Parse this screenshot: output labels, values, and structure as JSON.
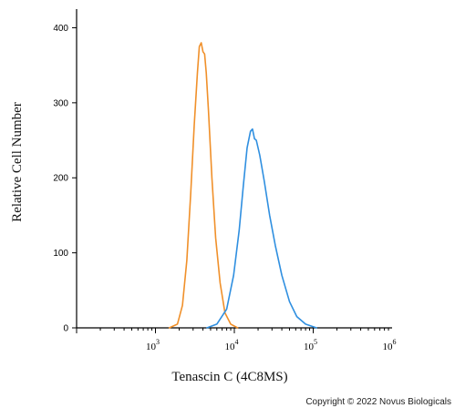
{
  "chart_data": {
    "type": "line",
    "title": "",
    "xlabel": "Tenascin C (4C8MS)",
    "ylabel": "Relative Cell Number",
    "x_scale": "log",
    "xlim": [
      100,
      1000000
    ],
    "ylim": [
      0,
      420
    ],
    "y_ticks": [
      0,
      100,
      200,
      300,
      400
    ],
    "x_ticks": [
      {
        "base": "10",
        "exp": "3",
        "value": 1000
      },
      {
        "base": "10",
        "exp": "4",
        "value": 10000
      },
      {
        "base": "10",
        "exp": "5",
        "value": 100000
      },
      {
        "base": "10",
        "exp": "6",
        "value": 1000000
      }
    ],
    "grid": false,
    "legend": "none",
    "series": [
      {
        "color": "#f0902a",
        "points": [
          [
            1500,
            0
          ],
          [
            1900,
            5
          ],
          [
            2200,
            30
          ],
          [
            2500,
            90
          ],
          [
            2800,
            180
          ],
          [
            3100,
            270
          ],
          [
            3400,
            340
          ],
          [
            3600,
            375
          ],
          [
            3800,
            380
          ],
          [
            4000,
            368
          ],
          [
            4200,
            365
          ],
          [
            4400,
            340
          ],
          [
            4700,
            290
          ],
          [
            5200,
            200
          ],
          [
            5800,
            120
          ],
          [
            6600,
            60
          ],
          [
            7600,
            20
          ],
          [
            9000,
            5
          ],
          [
            11000,
            0
          ]
        ]
      },
      {
        "color": "#2f8fe0",
        "points": [
          [
            4500,
            0
          ],
          [
            6000,
            5
          ],
          [
            8000,
            25
          ],
          [
            9800,
            70
          ],
          [
            11500,
            130
          ],
          [
            13000,
            190
          ],
          [
            14500,
            240
          ],
          [
            16000,
            262
          ],
          [
            17000,
            265
          ],
          [
            18000,
            252
          ],
          [
            19000,
            250
          ],
          [
            21000,
            230
          ],
          [
            24000,
            195
          ],
          [
            28000,
            150
          ],
          [
            33000,
            110
          ],
          [
            40000,
            70
          ],
          [
            50000,
            35
          ],
          [
            62000,
            15
          ],
          [
            80000,
            5
          ],
          [
            110000,
            0
          ]
        ]
      }
    ]
  },
  "footer": {
    "copyright": "Copyright © 2022 Novus Biologicals"
  }
}
